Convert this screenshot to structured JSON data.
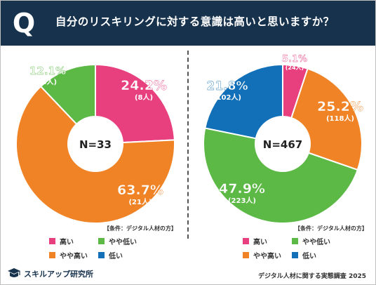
{
  "header": {
    "badge": "Q",
    "question": "自分のリスキリングに対する意識は高いと思いますか？"
  },
  "colors": {
    "header_bg": "#17324d",
    "high": "#e8407f",
    "somewhat_high": "#f08326",
    "somewhat_low": "#5cb946",
    "low": "#1170b8"
  },
  "chart_data": [
    {
      "type": "pie",
      "center_label": "N=33",
      "condition_note": "【条件：デジタル人材の方】",
      "slices": [
        {
          "name": "高い",
          "value": 24.2,
          "count_label": "(8人)",
          "color": "#e8407f"
        },
        {
          "name": "やや高い",
          "value": 63.7,
          "count_label": "(21人)",
          "color": "#f08326"
        },
        {
          "name": "やや低い",
          "value": 12.1,
          "count_label": "(4人)",
          "color": "#5cb946"
        }
      ]
    },
    {
      "type": "pie",
      "center_label": "N=467",
      "condition_note": "【条件：デジタル人材の方】",
      "slices": [
        {
          "name": "高い",
          "value": 5.1,
          "count_label": "(24人)",
          "color": "#e8407f"
        },
        {
          "name": "やや高い",
          "value": 25.2,
          "count_label": "(118人)",
          "color": "#f08326"
        },
        {
          "name": "やや低い",
          "value": 47.9,
          "count_label": "(223人)",
          "color": "#5cb946"
        },
        {
          "name": "低い",
          "value": 21.8,
          "count_label": "(102人)",
          "color": "#1170b8"
        }
      ]
    }
  ],
  "legend": [
    {
      "label": "高い",
      "color": "#e8407f"
    },
    {
      "label": "やや低い",
      "color": "#5cb946"
    },
    {
      "label": "やや高い",
      "color": "#f08326"
    },
    {
      "label": "低い",
      "color": "#1170b8"
    }
  ],
  "footer": {
    "brand": "スキルアップ研究所",
    "brand_icon": "graduation-cap-icon",
    "source": "デジタル人材に関する実態調査 2025"
  }
}
